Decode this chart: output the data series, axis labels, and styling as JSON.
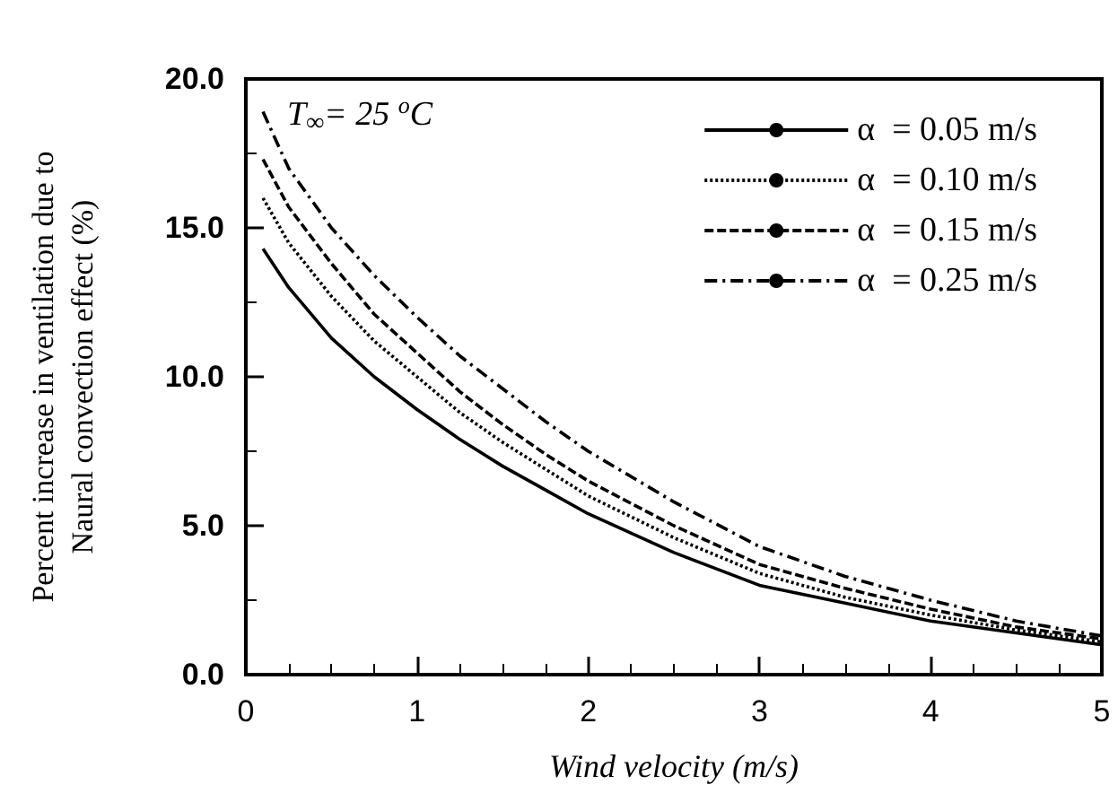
{
  "chart_data": {
    "type": "line",
    "xlabel": "Wind velocity (m/s)",
    "ylabel": "Percent increase in ventilation due to\nNaural convection effect (%)",
    "annotations": [
      "T$_{∞}$= 25 $^{o}$C"
    ],
    "xlim": [
      0,
      5
    ],
    "xticks": [
      0,
      1,
      2,
      3,
      4,
      5
    ],
    "ylim": [
      0,
      20
    ],
    "yticks": [
      {
        "value": 0,
        "label": "0.0"
      },
      {
        "value": 5,
        "label": "5.0"
      },
      {
        "value": 10,
        "label": "10.0"
      },
      {
        "value": 15,
        "label": "15.0"
      },
      {
        "value": 20,
        "label": "20.0"
      }
    ],
    "x": [
      0.1,
      0.25,
      0.5,
      0.75,
      1,
      1.25,
      1.5,
      1.75,
      2,
      2.5,
      3,
      3.5,
      4,
      4.5,
      5
    ],
    "series": [
      {
        "name": "α  = 0.05 m/s",
        "color": "#000000",
        "line_style": "solid",
        "values": [
          14.3,
          13.0,
          11.3,
          10.0,
          8.9,
          7.9,
          7.0,
          6.2,
          5.4,
          4.1,
          3.0,
          2.4,
          1.8,
          1.4,
          1.0
        ]
      },
      {
        "name": "α  = 0.10 m/s",
        "color": "#000000",
        "line_style": "dotted",
        "values": [
          16.0,
          14.5,
          12.7,
          11.2,
          10.0,
          8.8,
          7.8,
          6.9,
          6.0,
          4.6,
          3.4,
          2.6,
          2.0,
          1.5,
          1.1
        ]
      },
      {
        "name": "α  = 0.15 m/s",
        "color": "#000000",
        "line_style": "dashed",
        "values": [
          17.3,
          15.7,
          13.8,
          12.1,
          10.8,
          9.5,
          8.4,
          7.4,
          6.5,
          5.0,
          3.7,
          2.9,
          2.2,
          1.6,
          1.2
        ]
      },
      {
        "name": "α  = 0.25 m/s",
        "color": "#000000",
        "line_style": "dashdot",
        "values": [
          18.9,
          17.0,
          15.0,
          13.4,
          12.0,
          10.7,
          9.6,
          8.5,
          7.5,
          5.8,
          4.3,
          3.3,
          2.5,
          1.8,
          1.3
        ]
      }
    ],
    "legend": "top right",
    "grid": false,
    "marker": "none"
  }
}
